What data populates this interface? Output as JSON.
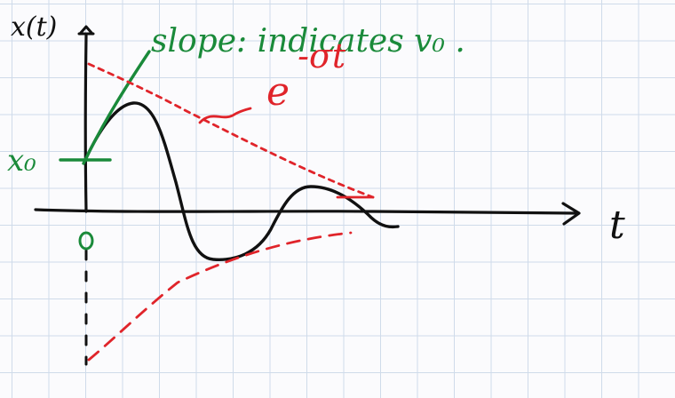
{
  "labels": {
    "y_axis": "x(t)",
    "x_axis": "t",
    "origin": "0",
    "initial_value": "x₀",
    "slope_note": "slope: indicates v₀ .",
    "envelope": "e^{-σt}",
    "envelope_base": "e",
    "envelope_exp": "-σt"
  },
  "colors": {
    "black_ink": "#111111",
    "red_ink": "#e0242a",
    "green_ink": "#1a8a3a",
    "grid": "#cfdbea",
    "paper": "#fbfbfd"
  }
}
